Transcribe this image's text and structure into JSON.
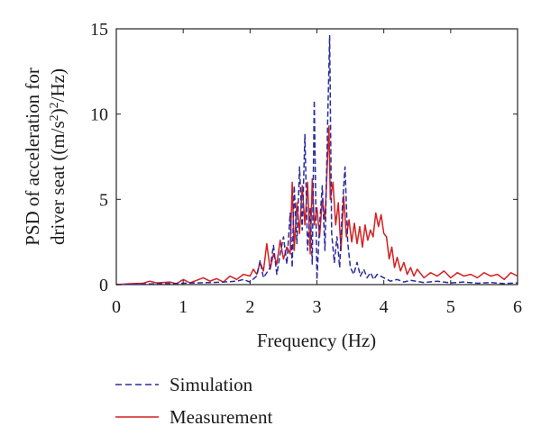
{
  "chart_data": {
    "type": "line",
    "xlabel": "Frequency (Hz)",
    "ylabel_line1": "PSD of acceleration for",
    "ylabel_line2_prefix": "driver seat ((m/s",
    "ylabel_line2_sup1": "2",
    "ylabel_line2_mid": ")",
    "ylabel_line2_sup2": "2",
    "ylabel_line2_suffix": "/Hz)",
    "xlim": [
      0,
      6
    ],
    "ylim": [
      0,
      15
    ],
    "xticks": [
      "0",
      "1",
      "2",
      "3",
      "4",
      "5",
      "6"
    ],
    "yticks": [
      "0",
      "5",
      "10",
      "15"
    ],
    "grid": false,
    "legend_position": "below",
    "series": [
      {
        "name": "Simulation",
        "color": "#2b2b9e",
        "style": "dashed",
        "points": [
          [
            0,
            0
          ],
          [
            0.2,
            0.02
          ],
          [
            0.4,
            0.03
          ],
          [
            0.6,
            0.05
          ],
          [
            0.8,
            0.06
          ],
          [
            1.0,
            0.08
          ],
          [
            1.2,
            0.1
          ],
          [
            1.4,
            0.12
          ],
          [
            1.6,
            0.15
          ],
          [
            1.8,
            0.2
          ],
          [
            1.9,
            0.3
          ],
          [
            2.0,
            0.15
          ],
          [
            2.1,
            0.5
          ],
          [
            2.15,
            1.4
          ],
          [
            2.2,
            0.4
          ],
          [
            2.3,
            1.0
          ],
          [
            2.35,
            2.3
          ],
          [
            2.4,
            0.6
          ],
          [
            2.45,
            1.8
          ],
          [
            2.5,
            2.8
          ],
          [
            2.55,
            1.2
          ],
          [
            2.6,
            4.2
          ],
          [
            2.63,
            1.0
          ],
          [
            2.66,
            5.8
          ],
          [
            2.7,
            2.4
          ],
          [
            2.74,
            6.9
          ],
          [
            2.78,
            3.2
          ],
          [
            2.82,
            8.8
          ],
          [
            2.86,
            2.0
          ],
          [
            2.9,
            4.5
          ],
          [
            2.93,
            1.2
          ],
          [
            2.96,
            10.8
          ],
          [
            3.0,
            0.3
          ],
          [
            3.04,
            3.5
          ],
          [
            3.08,
            5.8
          ],
          [
            3.12,
            2.0
          ],
          [
            3.16,
            9.5
          ],
          [
            3.19,
            14.6
          ],
          [
            3.22,
            3.0
          ],
          [
            3.26,
            1.3
          ],
          [
            3.3,
            2.8
          ],
          [
            3.34,
            1.0
          ],
          [
            3.38,
            4.5
          ],
          [
            3.42,
            6.9
          ],
          [
            3.46,
            2.5
          ],
          [
            3.5,
            1.0
          ],
          [
            3.55,
            0.6
          ],
          [
            3.6,
            1.3
          ],
          [
            3.65,
            0.5
          ],
          [
            3.7,
            0.9
          ],
          [
            3.75,
            0.4
          ],
          [
            3.8,
            0.7
          ],
          [
            3.85,
            0.3
          ],
          [
            3.9,
            0.6
          ],
          [
            4.0,
            0.4
          ],
          [
            4.1,
            0.2
          ],
          [
            4.2,
            0.3
          ],
          [
            4.3,
            0.15
          ],
          [
            4.4,
            0.25
          ],
          [
            4.6,
            0.12
          ],
          [
            4.8,
            0.2
          ],
          [
            5.0,
            0.1
          ],
          [
            5.2,
            0.15
          ],
          [
            5.4,
            0.08
          ],
          [
            5.6,
            0.12
          ],
          [
            5.8,
            0.06
          ],
          [
            6.0,
            0.1
          ]
        ]
      },
      {
        "name": "Measurement",
        "color": "#d42020",
        "style": "solid",
        "points": [
          [
            0,
            0
          ],
          [
            0.2,
            0.05
          ],
          [
            0.4,
            0.08
          ],
          [
            0.5,
            0.2
          ],
          [
            0.6,
            0.1
          ],
          [
            0.8,
            0.15
          ],
          [
            0.9,
            0.05
          ],
          [
            1.0,
            0.3
          ],
          [
            1.1,
            0.1
          ],
          [
            1.2,
            0.25
          ],
          [
            1.3,
            0.4
          ],
          [
            1.4,
            0.2
          ],
          [
            1.5,
            0.35
          ],
          [
            1.6,
            0.15
          ],
          [
            1.7,
            0.5
          ],
          [
            1.8,
            0.3
          ],
          [
            1.9,
            0.6
          ],
          [
            2.0,
            0.5
          ],
          [
            2.05,
            0.9
          ],
          [
            2.1,
            0.6
          ],
          [
            2.15,
            1.3
          ],
          [
            2.2,
            0.8
          ],
          [
            2.25,
            2.4
          ],
          [
            2.3,
            0.9
          ],
          [
            2.35,
            1.8
          ],
          [
            2.4,
            1.2
          ],
          [
            2.45,
            2.6
          ],
          [
            2.5,
            1.5
          ],
          [
            2.55,
            2.2
          ],
          [
            2.6,
            1.8
          ],
          [
            2.63,
            6.0
          ],
          [
            2.66,
            2.0
          ],
          [
            2.7,
            4.8
          ],
          [
            2.74,
            3.0
          ],
          [
            2.78,
            5.8
          ],
          [
            2.82,
            3.5
          ],
          [
            2.86,
            6.0
          ],
          [
            2.9,
            1.8
          ],
          [
            2.93,
            6.2
          ],
          [
            2.96,
            3.5
          ],
          [
            3.0,
            4.5
          ],
          [
            3.04,
            2.8
          ],
          [
            3.08,
            5.0
          ],
          [
            3.12,
            3.8
          ],
          [
            3.16,
            7.5
          ],
          [
            3.18,
            9.3
          ],
          [
            3.2,
            5.0
          ],
          [
            3.24,
            6.0
          ],
          [
            3.28,
            3.5
          ],
          [
            3.32,
            4.8
          ],
          [
            3.36,
            2.0
          ],
          [
            3.4,
            5.2
          ],
          [
            3.44,
            2.8
          ],
          [
            3.48,
            3.8
          ],
          [
            3.52,
            2.5
          ],
          [
            3.56,
            3.6
          ],
          [
            3.6,
            2.4
          ],
          [
            3.64,
            3.4
          ],
          [
            3.68,
            2.2
          ],
          [
            3.72,
            3.5
          ],
          [
            3.76,
            2.6
          ],
          [
            3.8,
            3.2
          ],
          [
            3.84,
            2.8
          ],
          [
            3.88,
            4.2
          ],
          [
            3.92,
            3.4
          ],
          [
            3.96,
            4.1
          ],
          [
            4.0,
            3.0
          ],
          [
            4.04,
            2.8
          ],
          [
            4.08,
            1.5
          ],
          [
            4.12,
            2.2
          ],
          [
            4.16,
            1.0
          ],
          [
            4.2,
            1.6
          ],
          [
            4.25,
            0.8
          ],
          [
            4.3,
            1.3
          ],
          [
            4.35,
            0.6
          ],
          [
            4.4,
            1.0
          ],
          [
            4.45,
            0.5
          ],
          [
            4.5,
            0.9
          ],
          [
            4.6,
            0.4
          ],
          [
            4.7,
            0.7
          ],
          [
            4.8,
            0.5
          ],
          [
            4.9,
            0.8
          ],
          [
            5.0,
            0.4
          ],
          [
            5.1,
            0.7
          ],
          [
            5.2,
            0.5
          ],
          [
            5.3,
            0.6
          ],
          [
            5.4,
            0.4
          ],
          [
            5.5,
            0.7
          ],
          [
            5.6,
            0.5
          ],
          [
            5.7,
            0.6
          ],
          [
            5.8,
            0.3
          ],
          [
            5.9,
            0.7
          ],
          [
            6.0,
            0.5
          ]
        ]
      }
    ]
  }
}
